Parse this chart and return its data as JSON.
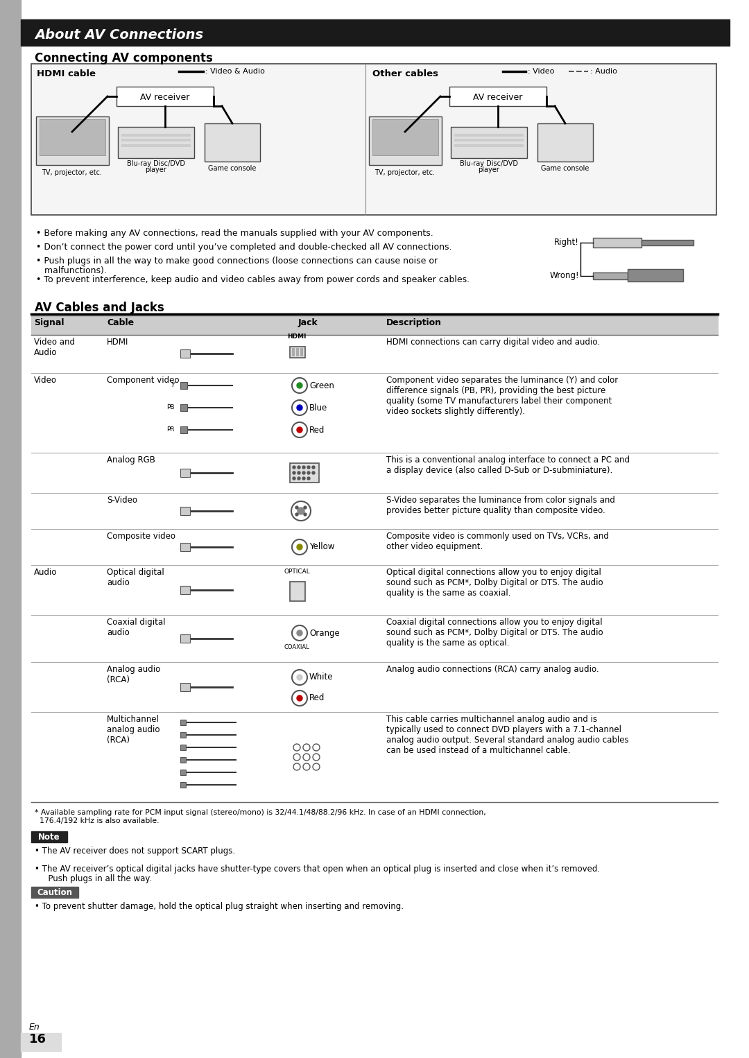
{
  "page_bg": "#ffffff",
  "title_bar_bg": "#1a1a1a",
  "title_bar_text": "About AV Connections",
  "title_bar_text_color": "#ffffff",
  "section1_heading": "Connecting AV components",
  "section2_heading": "AV Cables and Jacks",
  "bullet_points": [
    "Before making any AV connections, read the manuals supplied with your AV components.",
    "Don’t connect the power cord until you’ve completed and double-checked all AV connections.",
    "Push plugs in all the way to make good connections (loose connections can cause noise or\n   malfunctions).",
    "To prevent interference, keep audio and video cables away from power cords and speaker cables."
  ],
  "right_label": "Right!",
  "wrong_label": "Wrong!",
  "footnote": "* Available sampling rate for PCM input signal (stereo/mono) is 32/44.1/48/88.2/96 kHz. In case of an HDMI connection,\n  176.4/192 kHz is also available.",
  "note_label": "Note",
  "note_points": [
    "The AV receiver does not support SCART plugs.",
    "The AV receiver’s optical digital jacks have shutter-type covers that open when an optical plug is inserted and close when it’s removed.\n  Push plugs in all the way."
  ],
  "caution_label": "Caution",
  "caution_points": [
    "To prevent shutter damage, hold the optical plug straight when inserting and removing."
  ],
  "en_label": "En",
  "page_num": "16"
}
